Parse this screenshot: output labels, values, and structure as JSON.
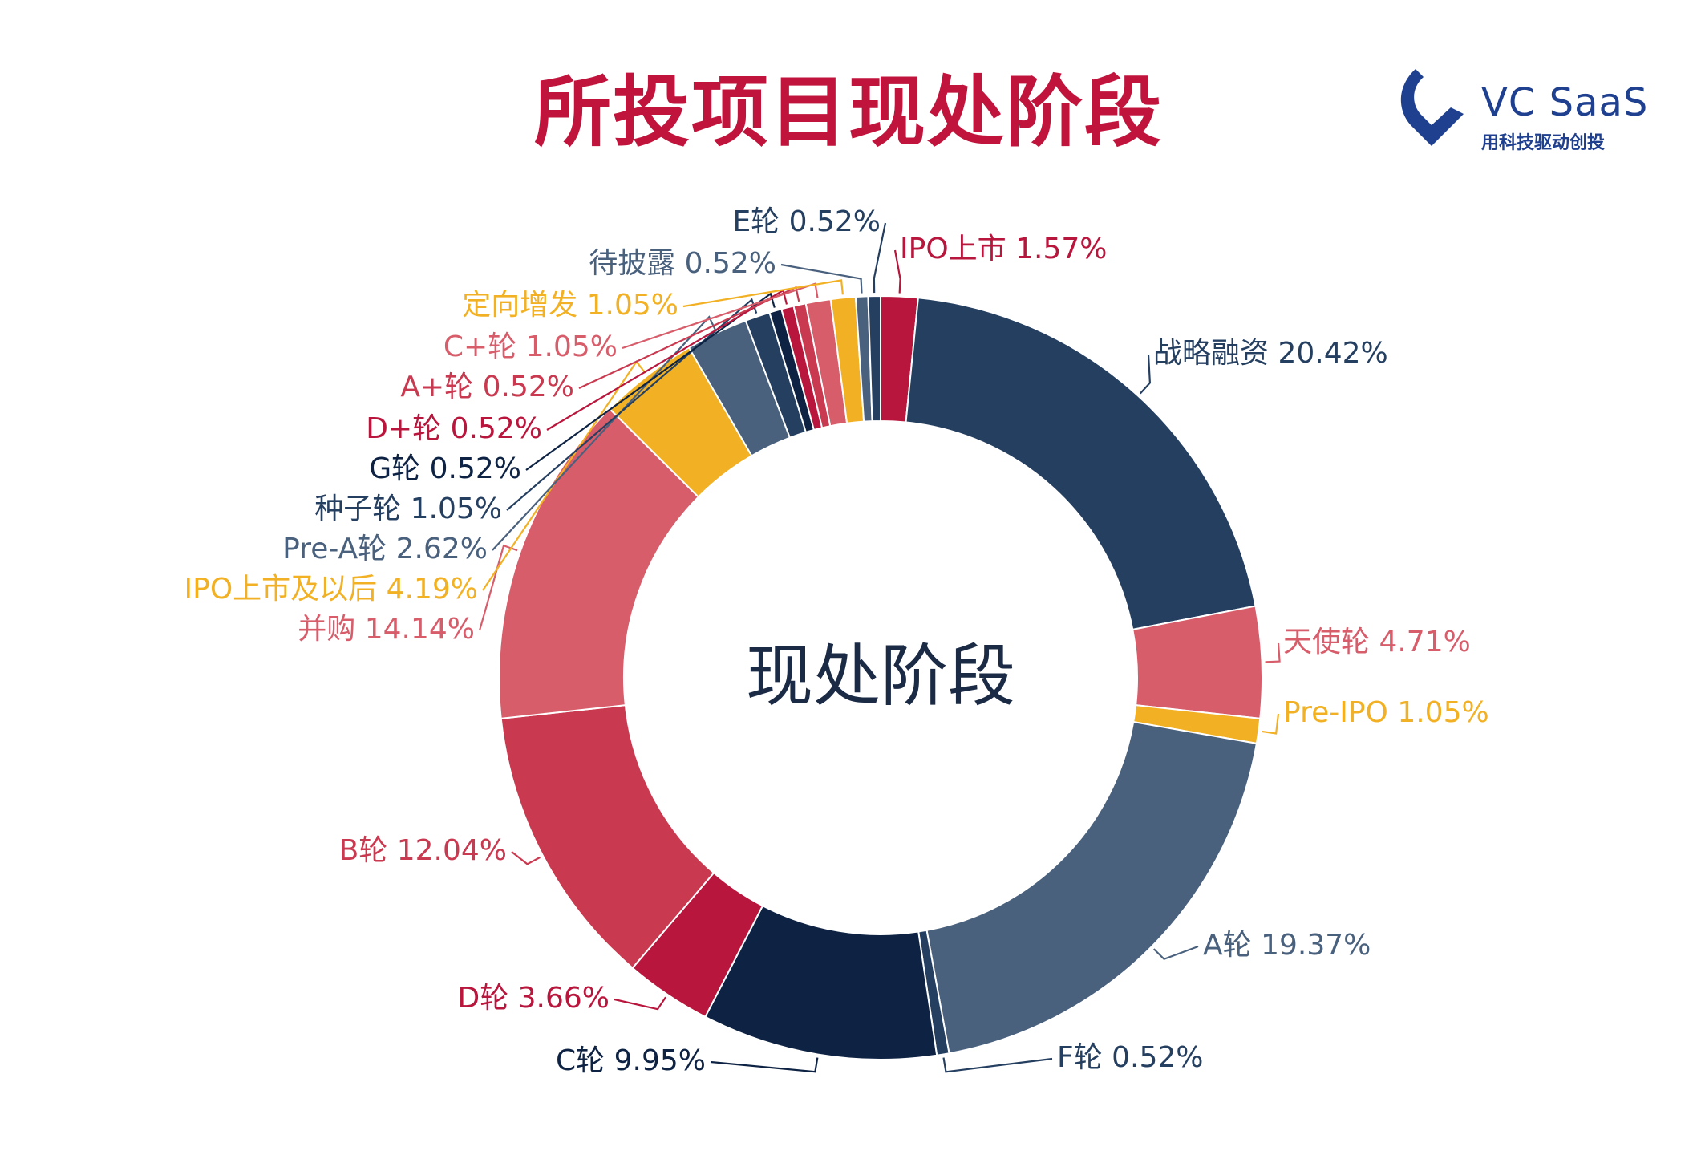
{
  "page": {
    "title": "所投项目现处阶段"
  },
  "logo": {
    "name": "VC  SaaS",
    "tagline": "用科技驱动创投"
  },
  "chart_data": {
    "type": "pie",
    "center_label": "现处阶段",
    "slices": [
      {
        "label": "IPO上市",
        "value": 1.57,
        "color": "#B8163C"
      },
      {
        "label": "战略融资",
        "value": 20.42,
        "color": "#253F61"
      },
      {
        "label": "天使轮",
        "value": 4.71,
        "color": "#D75D6B"
      },
      {
        "label": "Pre-IPO",
        "value": 1.05,
        "color": "#F2B124"
      },
      {
        "label": "A轮",
        "value": 19.37,
        "color": "#4A617E"
      },
      {
        "label": "F轮",
        "value": 0.52,
        "color": "#253F61"
      },
      {
        "label": "C轮",
        "value": 9.95,
        "color": "#0E2344"
      },
      {
        "label": "D轮",
        "value": 3.66,
        "color": "#B8163C"
      },
      {
        "label": "B轮",
        "value": 12.04,
        "color": "#C93A50"
      },
      {
        "label": "并购",
        "value": 14.14,
        "color": "#D75D6B"
      },
      {
        "label": "IPO上市及以后",
        "value": 4.19,
        "color": "#F2B124"
      },
      {
        "label": "Pre-A轮",
        "value": 2.62,
        "color": "#4A617E"
      },
      {
        "label": "种子轮",
        "value": 1.05,
        "color": "#253F61"
      },
      {
        "label": "G轮",
        "value": 0.52,
        "color": "#0E2344"
      },
      {
        "label": "D+轮",
        "value": 0.52,
        "color": "#B8163C"
      },
      {
        "label": "A+轮",
        "value": 0.52,
        "color": "#C93A50"
      },
      {
        "label": "C+轮",
        "value": 1.05,
        "color": "#D75D6B"
      },
      {
        "label": "定向增发",
        "value": 1.05,
        "color": "#F2B124"
      },
      {
        "label": "待披露",
        "value": 0.52,
        "color": "#4A617E"
      },
      {
        "label": "E轮",
        "value": 0.52,
        "color": "#253F61"
      }
    ],
    "labels": [
      "IPO上市 1.57%",
      "战略融资 20.42%",
      "天使轮 4.71%",
      "Pre-IPO 1.05%",
      "A轮 19.37%",
      "F轮 0.52%",
      "C轮 9.95%",
      "D轮 3.66%",
      "B轮 12.04%",
      "并购 14.14%",
      "IPO上市及以后 4.19%",
      "Pre-A轮 2.62%",
      "种子轮 1.05%",
      "G轮 0.52%",
      "D+轮 0.52%",
      "A+轮 0.52%",
      "C+轮 1.05%",
      "定向增发 1.05%",
      "待披露 0.52%",
      "E轮 0.52%"
    ]
  }
}
